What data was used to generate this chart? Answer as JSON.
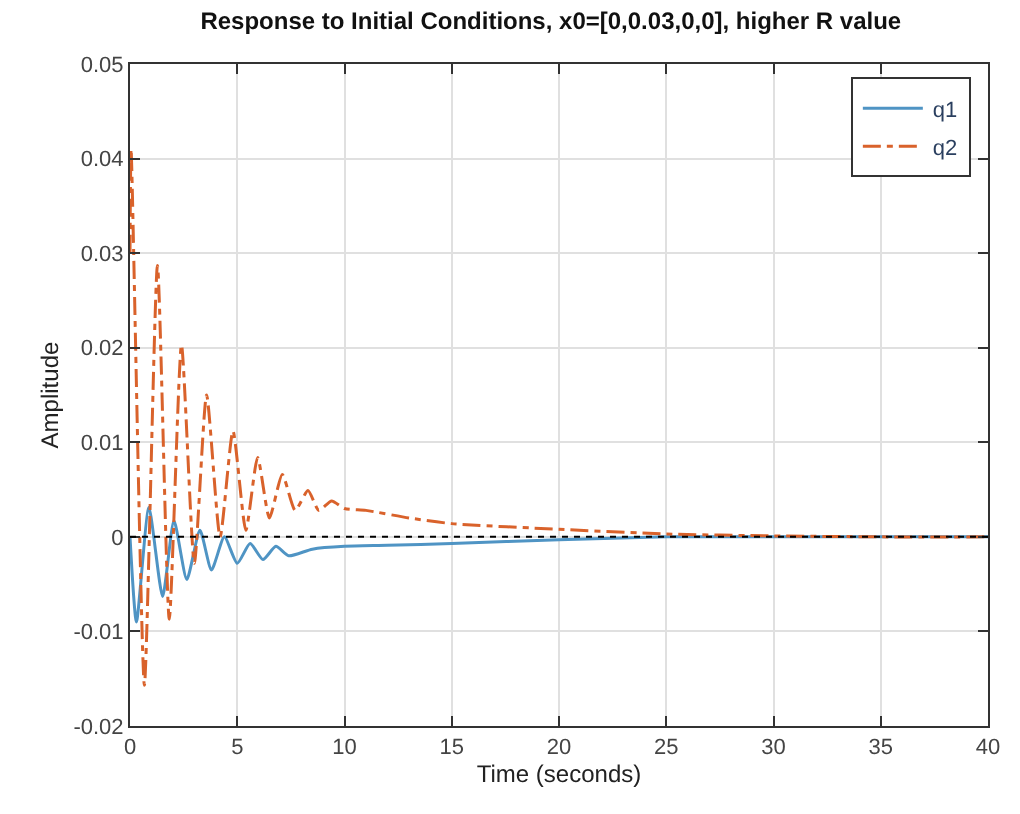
{
  "chart_data": {
    "type": "line",
    "title": "Response to Initial Conditions, x0=[0,0.03,0,0], higher R value",
    "xlabel": "Time (seconds)",
    "ylabel": "Amplitude",
    "series": [
      {
        "name": "q1",
        "color": "#4f94c4",
        "line_style": "solid",
        "x": [
          0,
          0.3,
          0.88,
          1.52,
          2.05,
          2.65,
          3.26,
          3.8,
          4.4,
          5.0,
          5.6,
          6.2,
          6.8,
          7.4,
          8.5,
          10,
          12,
          15,
          20,
          25,
          30,
          35,
          40
        ],
        "values": [
          0,
          -0.009,
          0.0031,
          -0.0063,
          0.0017,
          -0.0045,
          0.0007,
          -0.0035,
          0,
          -0.0028,
          -0.0007,
          -0.0024,
          -0.001,
          -0.002,
          -0.0013,
          -0.001,
          -0.0009,
          -0.0007,
          -0.0003,
          0,
          0,
          0,
          0
        ]
      },
      {
        "name": "q2",
        "color": "#d9622b",
        "line_style": "dashdot",
        "x": [
          0,
          0.05,
          0.67,
          1.28,
          1.83,
          2.4,
          3.0,
          3.57,
          4.2,
          4.8,
          5.4,
          5.95,
          6.5,
          7.1,
          7.7,
          8.3,
          8.8,
          9.4,
          10,
          11,
          13,
          15,
          20,
          25,
          30,
          35,
          40
        ],
        "values": [
          0.03,
          0.041,
          -0.0157,
          0.0287,
          -0.0087,
          0.0203,
          -0.0028,
          0.015,
          0,
          0.0112,
          0.0007,
          0.0084,
          0.002,
          0.0066,
          0.0028,
          0.0049,
          0.0028,
          0.0038,
          0.003,
          0.0028,
          0.002,
          0.0014,
          0.0008,
          0.0003,
          0.0001,
          0,
          0
        ]
      }
    ],
    "xlim": [
      0,
      40
    ],
    "xticks": [
      0,
      5,
      10,
      15,
      20,
      25,
      30,
      35,
      40
    ],
    "ylim": [
      -0.02,
      0.05
    ],
    "yticks": [
      -0.02,
      -0.01,
      0,
      0.01,
      0.02,
      0.03,
      0.04,
      0.05
    ],
    "ref_lines": [
      {
        "axis": "y",
        "value": 0,
        "color": "#000000",
        "line_style": "dotted"
      }
    ],
    "grid": true,
    "legend": "top right"
  }
}
